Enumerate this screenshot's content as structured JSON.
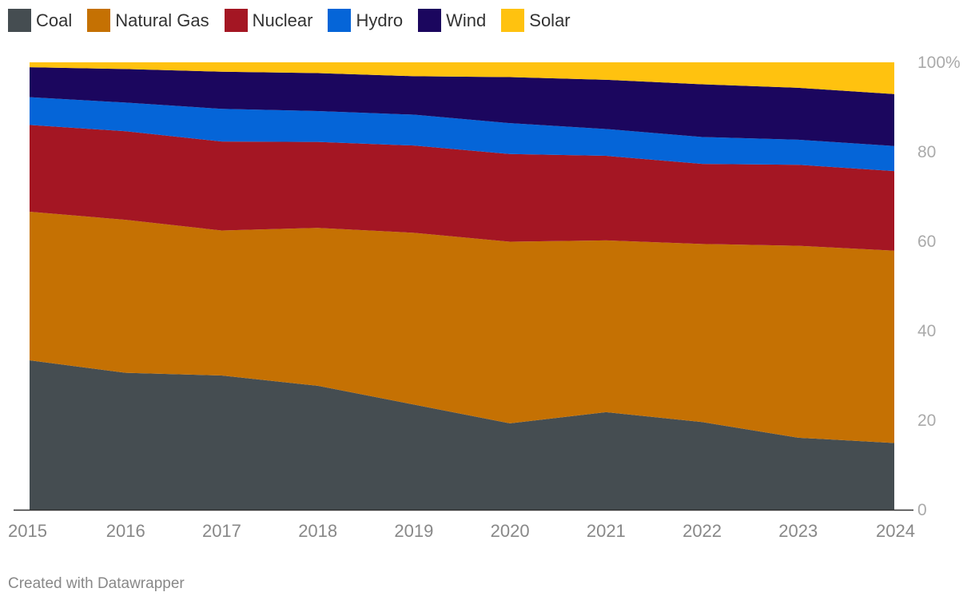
{
  "legend": {
    "items": [
      {
        "label": "Coal",
        "color": "#454D51"
      },
      {
        "label": "Natural Gas",
        "color": "#C57103"
      },
      {
        "label": "Nuclear",
        "color": "#A41623"
      },
      {
        "label": "Hydro",
        "color": "#0565D8"
      },
      {
        "label": "Wind",
        "color": "#1B065E"
      },
      {
        "label": "Solar",
        "color": "#FFC20F"
      }
    ]
  },
  "footer": {
    "credit": "Created with Datawrapper"
  },
  "chart_data": {
    "type": "area",
    "stacked": true,
    "x": [
      "2015",
      "2016",
      "2017",
      "2018",
      "2019",
      "2020",
      "2021",
      "2022",
      "2023",
      "2024"
    ],
    "ylim": [
      0,
      100
    ],
    "y_ticks": [
      {
        "value": 0,
        "label": "0"
      },
      {
        "value": 20,
        "label": "20"
      },
      {
        "value": 40,
        "label": "40"
      },
      {
        "value": 60,
        "label": "60"
      },
      {
        "value": 80,
        "label": "80"
      },
      {
        "value": 100,
        "label": "100%"
      }
    ],
    "y_axis_position": "right",
    "grid": false,
    "legend_position": "top-left",
    "series": [
      {
        "name": "Coal",
        "color": "#454D51",
        "values": [
          33.4,
          30.6,
          30.0,
          27.7,
          23.5,
          19.3,
          21.8,
          19.6,
          16.1,
          14.9
        ]
      },
      {
        "name": "Natural Gas",
        "color": "#C57103",
        "values": [
          33.2,
          34.2,
          32.4,
          35.3,
          38.4,
          40.6,
          38.4,
          39.8,
          42.9,
          43.0
        ]
      },
      {
        "name": "Nuclear",
        "color": "#A41623",
        "values": [
          19.4,
          19.8,
          19.9,
          19.2,
          19.5,
          19.6,
          18.9,
          17.9,
          18.1,
          17.8
        ]
      },
      {
        "name": "Hydro",
        "color": "#0565D8",
        "values": [
          6.2,
          6.4,
          7.3,
          6.9,
          6.9,
          6.9,
          6.0,
          6.0,
          5.6,
          5.6
        ]
      },
      {
        "name": "Wind",
        "color": "#1B065E",
        "values": [
          6.7,
          7.5,
          8.3,
          8.5,
          8.6,
          10.3,
          11.0,
          11.8,
          11.6,
          11.6
        ]
      },
      {
        "name": "Solar",
        "color": "#FFC20F",
        "values": [
          1.1,
          1.5,
          2.1,
          2.4,
          3.1,
          3.3,
          3.9,
          4.9,
          5.7,
          7.1
        ]
      }
    ]
  }
}
